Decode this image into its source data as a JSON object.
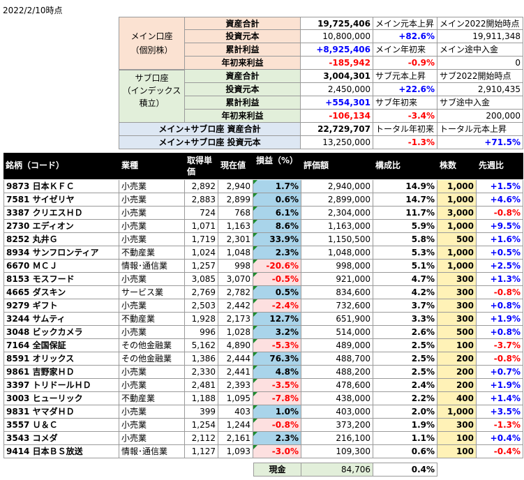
{
  "date": "2022/2/10時点",
  "colors": {
    "main_label_bg": "#fbe2d2",
    "sub_label_bg": "#e2efda",
    "total_label_bg": "#dde7f3",
    "header_bg": "#000000",
    "pos_bar": "#a9d4ea",
    "neg_bar": "#fde0e0",
    "shares_bg": "#fff2b7",
    "positive": "#0000ff",
    "negative": "#ff0000"
  },
  "summary": {
    "main_label": "メイン口座\n（個別株）",
    "sub_label": "サブ口座\n（インデックス\n積立）",
    "rows": [
      {
        "label": "資産合計",
        "value": "19,725,406",
        "note_label": "メイン元本上昇",
        "note_value": "+82.6%",
        "note2_label": "メイン2022開始時点",
        "note2_value": "19,911,348"
      },
      {
        "label": "投資元本",
        "value": "10,800,000"
      },
      {
        "label": "累計利益",
        "value": "+8,925,406",
        "note_label": "メイン年初来",
        "note_value": "-0.9%",
        "note2_label": "メイン途中入金",
        "note2_value": "0"
      },
      {
        "label": "年初来利益",
        "value": "-185,942"
      },
      {
        "label": "資産合計",
        "value": "3,004,301",
        "note_label": "サブ元本上昇",
        "note_value": "+22.6%",
        "note2_label": "サブ2022開始時点",
        "note2_value": "2,910,435"
      },
      {
        "label": "投資元本",
        "value": "2,450,000"
      },
      {
        "label": "累計利益",
        "value": "+554,301",
        "note_label": "サブ年初来",
        "note_value": "-3.4%",
        "note2_label": "サブ途中入金",
        "note2_value": "200,000"
      },
      {
        "label": "年初来利益",
        "value": "-106,134"
      },
      {
        "label": "メイン+サブロ座 資産合計",
        "value": "22,729,707",
        "note_label": "トータル年初来",
        "note_value": "-1.3%",
        "note2_label": "トータル元本上昇",
        "note2_value": "+71.5%"
      },
      {
        "label": "メイン+サブロ座 投資元本",
        "value": "13,250,000"
      }
    ]
  },
  "table": {
    "headers": [
      "銘柄（コード）",
      "業種",
      "取得単価",
      "現在値",
      "損益（%）",
      "評価額",
      "構成比",
      "株数",
      "先週比"
    ],
    "rows": [
      {
        "name": "9873 日本ＫＦＣ",
        "sector": "小売業",
        "cost": "2,892",
        "price": "2,940",
        "pl": "1.7%",
        "pl_pct": 1.7,
        "value": "2,940,000",
        "ratio": "14.9%",
        "shares": "1,000",
        "week": "+1.5%"
      },
      {
        "name": "7581 サイゼリヤ",
        "sector": "小売業",
        "cost": "2,883",
        "price": "2,899",
        "pl": "0.6%",
        "pl_pct": 0.6,
        "value": "2,899,000",
        "ratio": "14.7%",
        "shares": "1,000",
        "week": "+4.6%"
      },
      {
        "name": "3387 クリエスＨＤ",
        "sector": "小売業",
        "cost": "724",
        "price": "768",
        "pl": "6.1%",
        "pl_pct": 6.1,
        "value": "2,304,000",
        "ratio": "11.7%",
        "shares": "3,000",
        "week": "-0.8%"
      },
      {
        "name": "2730 エディオン",
        "sector": "小売業",
        "cost": "1,071",
        "price": "1,163",
        "pl": "8.6%",
        "pl_pct": 8.6,
        "value": "1,163,000",
        "ratio": "5.9%",
        "shares": "1,000",
        "week": "+9.5%"
      },
      {
        "name": "8252 丸井Ｇ",
        "sector": "小売業",
        "cost": "1,719",
        "price": "2,301",
        "pl": "33.9%",
        "pl_pct": 33.9,
        "value": "1,150,500",
        "ratio": "5.8%",
        "shares": "500",
        "week": "+1.6%"
      },
      {
        "name": "8934 サンフロンティア",
        "sector": "不動産業",
        "cost": "1,024",
        "price": "1,048",
        "pl": "2.3%",
        "pl_pct": 2.3,
        "value": "1,048,000",
        "ratio": "5.3%",
        "shares": "1,000",
        "week": "+0.5%"
      },
      {
        "name": "6670 ＭＣＪ",
        "sector": "情報･通信業",
        "cost": "1,257",
        "price": "998",
        "pl": "-20.6%",
        "pl_pct": -20.6,
        "value": "998,000",
        "ratio": "5.1%",
        "shares": "1,000",
        "week": "+2.5%"
      },
      {
        "name": "8153 モスフード",
        "sector": "小売業",
        "cost": "3,085",
        "price": "3,070",
        "pl": "-0.5%",
        "pl_pct": -0.5,
        "value": "921,000",
        "ratio": "4.7%",
        "shares": "300",
        "week": "+1.3%"
      },
      {
        "name": "4665 ダスキン",
        "sector": "サービス業",
        "cost": "2,769",
        "price": "2,782",
        "pl": "0.5%",
        "pl_pct": 0.5,
        "value": "834,600",
        "ratio": "4.2%",
        "shares": "300",
        "week": "-0.8%"
      },
      {
        "name": "9279 ギフト",
        "sector": "小売業",
        "cost": "2,503",
        "price": "2,442",
        "pl": "-2.4%",
        "pl_pct": -2.4,
        "value": "732,600",
        "ratio": "3.7%",
        "shares": "300",
        "week": "+0.8%"
      },
      {
        "name": "3244 サムティ",
        "sector": "不動産業",
        "cost": "1,928",
        "price": "2,173",
        "pl": "12.7%",
        "pl_pct": 12.7,
        "value": "651,900",
        "ratio": "3.3%",
        "shares": "300",
        "week": "+1.9%"
      },
      {
        "name": "3048 ビックカメラ",
        "sector": "小売業",
        "cost": "996",
        "price": "1,028",
        "pl": "3.2%",
        "pl_pct": 3.2,
        "value": "514,000",
        "ratio": "2.6%",
        "shares": "500",
        "week": "+0.8%"
      },
      {
        "name": "7164 全国保証",
        "sector": "その他金融業",
        "cost": "5,162",
        "price": "4,890",
        "pl": "-5.3%",
        "pl_pct": -5.3,
        "value": "489,000",
        "ratio": "2.5%",
        "shares": "100",
        "week": "-3.7%"
      },
      {
        "name": "8591 オリックス",
        "sector": "その他金融業",
        "cost": "1,386",
        "price": "2,444",
        "pl": "76.3%",
        "pl_pct": 76.3,
        "value": "488,700",
        "ratio": "2.5%",
        "shares": "200",
        "week": "-0.8%"
      },
      {
        "name": "9861 吉野家ＨＤ",
        "sector": "小売業",
        "cost": "2,330",
        "price": "2,441",
        "pl": "4.8%",
        "pl_pct": 4.8,
        "value": "488,200",
        "ratio": "2.5%",
        "shares": "200",
        "week": "+0.7%"
      },
      {
        "name": "3397 トリドールＨＤ",
        "sector": "小売業",
        "cost": "2,481",
        "price": "2,393",
        "pl": "-3.5%",
        "pl_pct": -3.5,
        "value": "478,600",
        "ratio": "2.4%",
        "shares": "200",
        "week": "+1.9%"
      },
      {
        "name": "3003 ヒューリック",
        "sector": "不動産業",
        "cost": "1,188",
        "price": "1,095",
        "pl": "-7.8%",
        "pl_pct": -7.8,
        "value": "438,000",
        "ratio": "2.2%",
        "shares": "400",
        "week": "+1.4%"
      },
      {
        "name": "9831 ヤマダＨＤ",
        "sector": "小売業",
        "cost": "399",
        "price": "403",
        "pl": "1.0%",
        "pl_pct": 1.0,
        "value": "403,000",
        "ratio": "2.0%",
        "shares": "1,000",
        "week": "+3.5%"
      },
      {
        "name": "3557 Ｕ＆Ｃ",
        "sector": "小売業",
        "cost": "1,254",
        "price": "1,244",
        "pl": "-0.8%",
        "pl_pct": -0.8,
        "value": "373,200",
        "ratio": "1.9%",
        "shares": "300",
        "week": "-1.3%"
      },
      {
        "name": "3543 コメダ",
        "sector": "小売業",
        "cost": "2,112",
        "price": "2,161",
        "pl": "2.3%",
        "pl_pct": 2.3,
        "value": "216,100",
        "ratio": "1.1%",
        "shares": "100",
        "week": "+0.4%"
      },
      {
        "name": "9414 日本ＢＳ放送",
        "sector": "情報･通信業",
        "cost": "1,127",
        "price": "1,093",
        "pl": "-3.0%",
        "pl_pct": -3.0,
        "value": "109,300",
        "ratio": "0.6%",
        "shares": "100",
        "week": "-0.4%"
      }
    ]
  },
  "cash": {
    "label": "現金",
    "value": "84,706",
    "ratio": "0.4%"
  }
}
